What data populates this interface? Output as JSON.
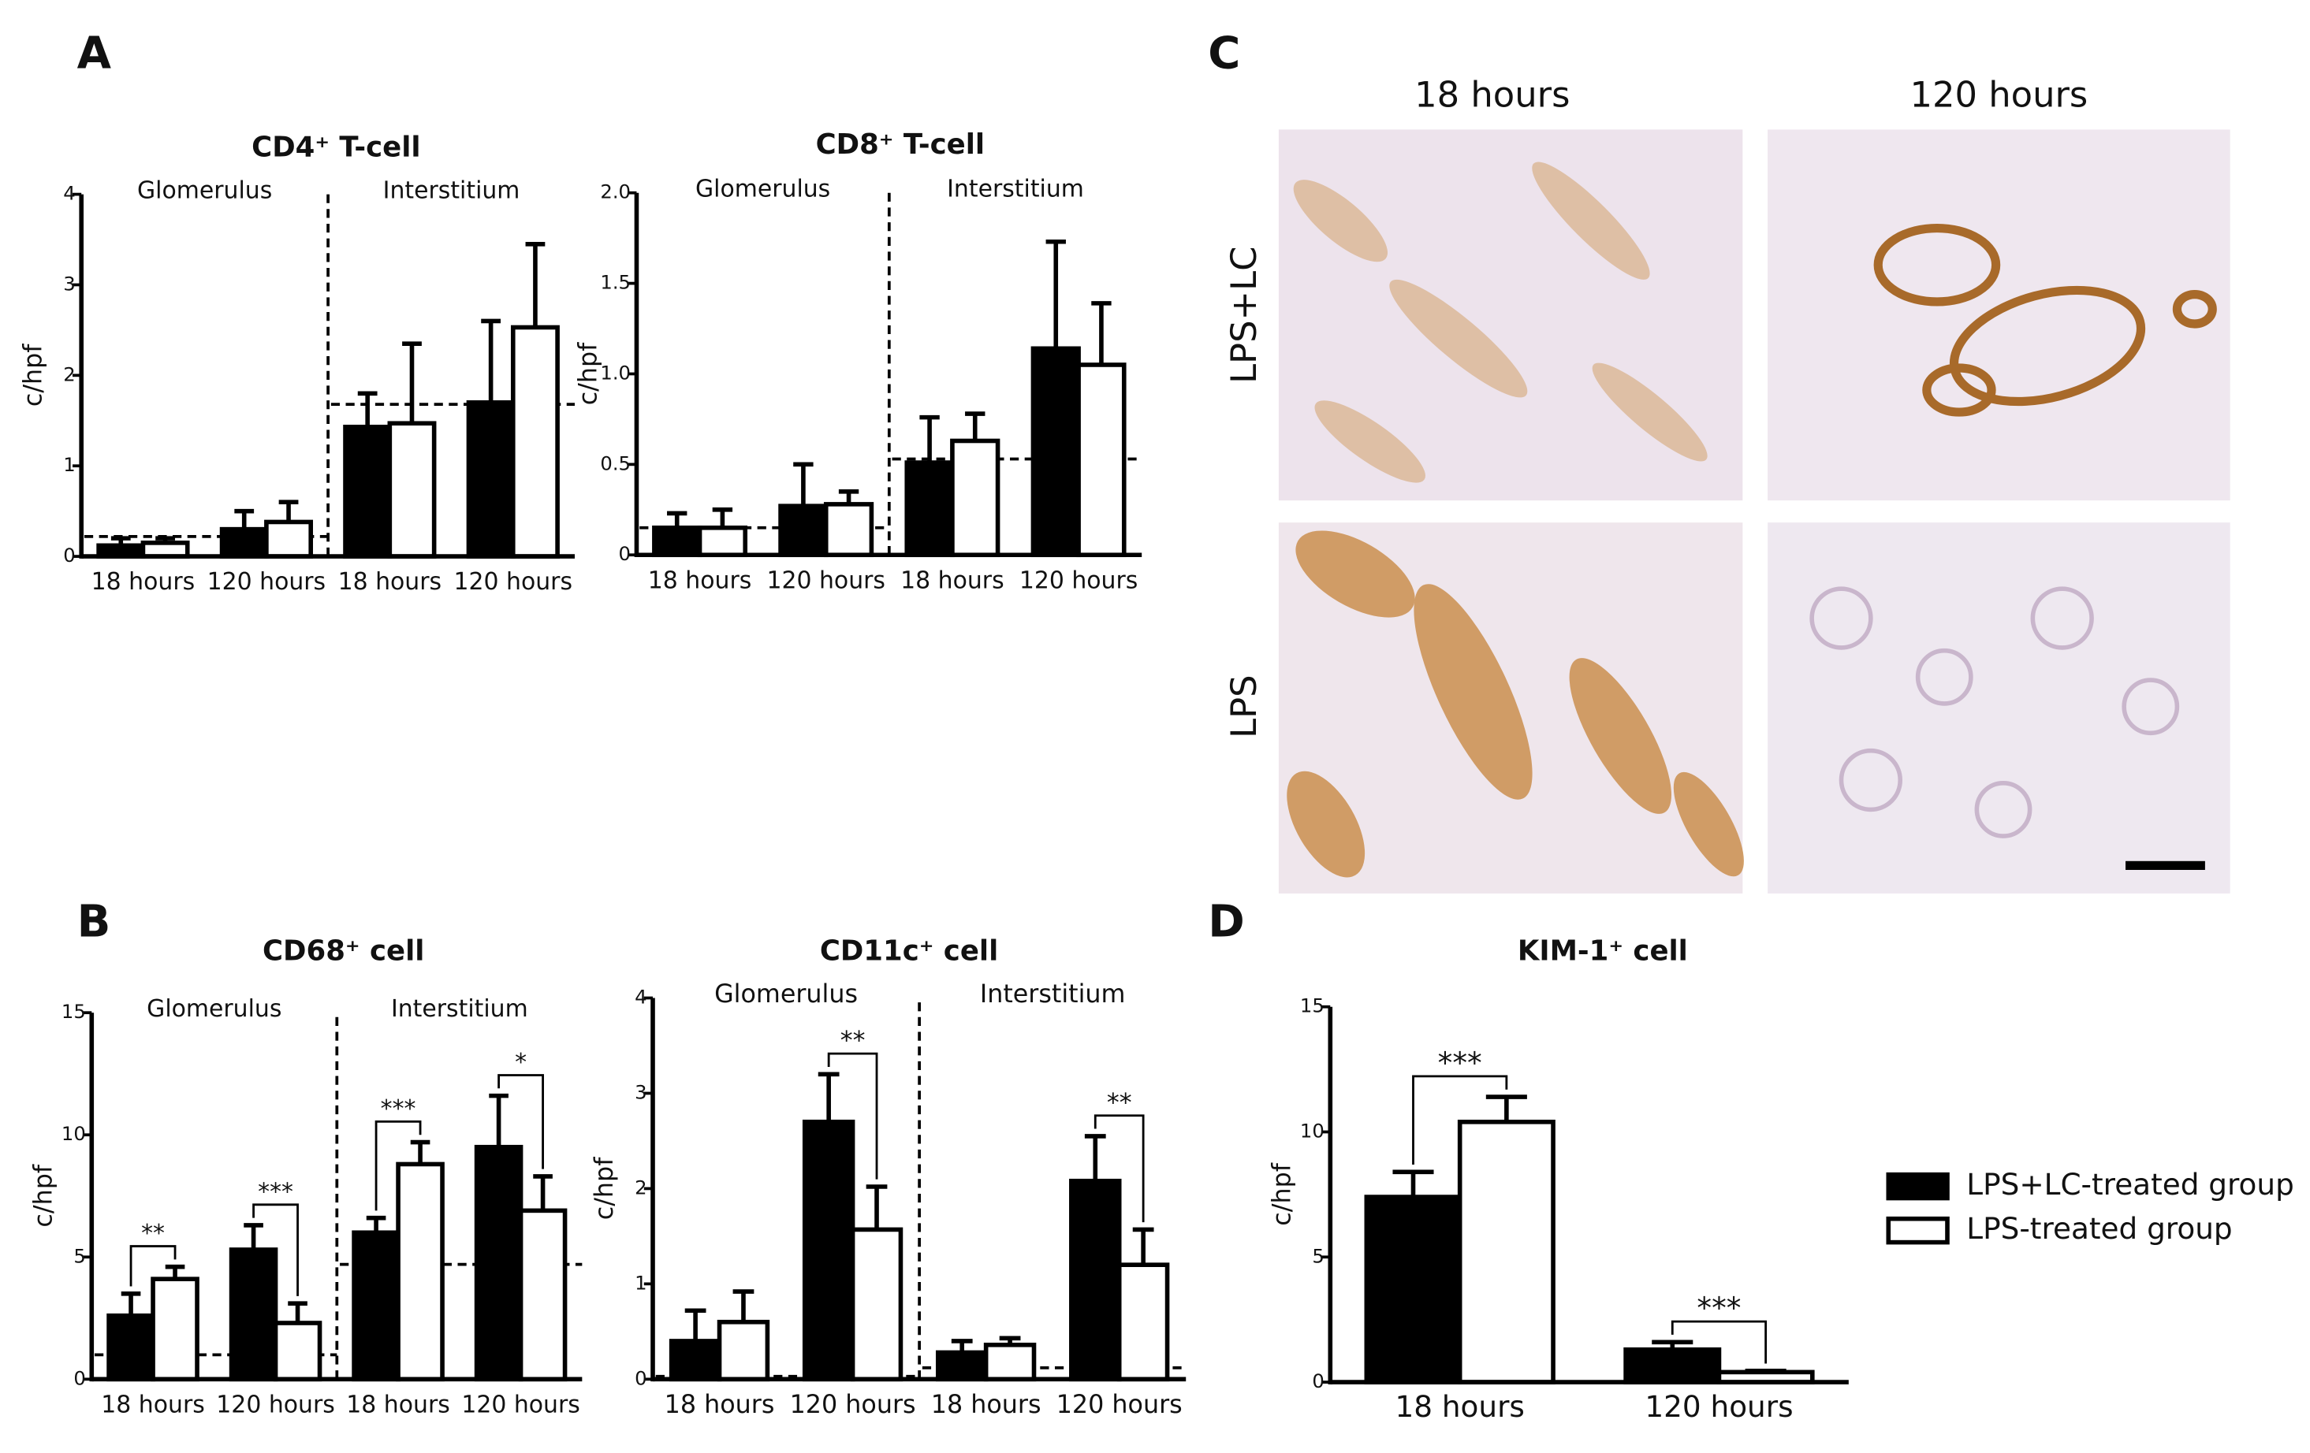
{
  "panel_labels": [
    "A",
    "B",
    "C",
    "D"
  ],
  "micrographs": {
    "columns": [
      "18 hours",
      "120 hours"
    ],
    "rows": [
      "LPS+LC",
      "LPS"
    ]
  },
  "chart_data": [
    {
      "type": "bar",
      "title": "CD4⁺ T-cell",
      "y_label": "c/hpf",
      "categories": [
        "18 hours",
        "120 hours",
        "18 hours",
        "120 hours"
      ],
      "regions": [
        {
          "label": "Glomerulus",
          "baseline": 0.22
        },
        {
          "label": "Interstitium",
          "baseline": 1.68
        }
      ],
      "series": [
        {
          "color": "#000000",
          "values": [
            0.12,
            0.3,
            1.43,
            1.7
          ],
          "errors": [
            0.08,
            0.2,
            0.37,
            0.9
          ]
        },
        {
          "color": "#ffffff",
          "values": [
            0.15,
            0.38,
            1.47,
            2.53
          ],
          "errors": [
            0.05,
            0.22,
            0.88,
            0.92
          ]
        }
      ],
      "ylim": [
        0,
        4
      ],
      "yticks": [
        0,
        1,
        2,
        3,
        4
      ],
      "grid": false
    },
    {
      "type": "bar",
      "title": "CD8⁺ T-cell",
      "y_label": "c/hpf",
      "categories": [
        "18 hours",
        "120 hours",
        "18 hours",
        "120 hours"
      ],
      "regions": [
        {
          "label": "Glomerulus",
          "baseline": 0.15
        },
        {
          "label": "Interstitium",
          "baseline": 0.53
        }
      ],
      "series": [
        {
          "color": "#000000",
          "values": [
            0.15,
            0.27,
            0.51,
            1.14
          ],
          "errors": [
            0.08,
            0.23,
            0.25,
            0.59
          ]
        },
        {
          "color": "#ffffff",
          "values": [
            0.15,
            0.28,
            0.63,
            1.05
          ],
          "errors": [
            0.1,
            0.07,
            0.15,
            0.34
          ]
        }
      ],
      "ylim": [
        0,
        2
      ],
      "yticks": [
        0,
        0.5,
        {
          "value": 1,
          "label": "1.0"
        },
        1.5,
        {
          "value": 2,
          "label": "2.0"
        }
      ],
      "grid": false
    },
    {
      "type": "bar",
      "title": "CD68⁺ cell",
      "y_label": "c/hpf",
      "categories": [
        "18 hours",
        "120 hours",
        "18 hours",
        "120 hours"
      ],
      "regions": [
        {
          "label": "Glomerulus",
          "baseline": 1.0
        },
        {
          "label": "Interstitium",
          "baseline": 4.7
        }
      ],
      "significance": [
        "**",
        "***",
        "***",
        "*"
      ],
      "series": [
        {
          "color": "#000000",
          "values": [
            2.6,
            5.3,
            6.0,
            9.5
          ],
          "errors": [
            0.9,
            1.0,
            0.6,
            2.1
          ]
        },
        {
          "color": "#ffffff",
          "values": [
            4.1,
            2.3,
            8.8,
            6.9
          ],
          "errors": [
            0.5,
            0.8,
            0.9,
            1.4
          ]
        }
      ],
      "ylim": [
        0,
        15
      ],
      "yticks": [
        0,
        5,
        10,
        15
      ],
      "grid": false
    },
    {
      "type": "bar",
      "title": "CD11c⁺ cell",
      "y_label": "c/hpf",
      "categories": [
        "18 hours",
        "120 hours",
        "18 hours",
        "120 hours"
      ],
      "regions": [
        {
          "label": "Glomerulus",
          "baseline": 0.03
        },
        {
          "label": "Interstitium",
          "baseline": 0.12
        }
      ],
      "significance": [
        null,
        "**",
        null,
        "**"
      ],
      "series": [
        {
          "color": "#000000",
          "values": [
            0.4,
            2.7,
            0.28,
            2.08
          ],
          "errors": [
            0.32,
            0.5,
            0.12,
            0.47
          ]
        },
        {
          "color": "#ffffff",
          "values": [
            0.6,
            1.57,
            0.36,
            1.2
          ],
          "errors": [
            0.32,
            0.45,
            0.07,
            0.37
          ]
        }
      ],
      "ylim": [
        0,
        4
      ],
      "yticks": [
        0,
        1,
        2,
        3,
        4
      ],
      "grid": false
    },
    {
      "type": "bar",
      "title": "KIM-1⁺ cell",
      "y_label": "c/hpf",
      "categories": [
        "18 hours",
        "120 hours"
      ],
      "significance": [
        "***",
        "***"
      ],
      "series": [
        {
          "name": "LPS+LC-treated group",
          "color": "#000000",
          "values": [
            7.4,
            1.3
          ],
          "errors": [
            1.0,
            0.3
          ]
        },
        {
          "name": "LPS-treated group",
          "color": "#ffffff",
          "values": [
            10.4,
            0.4
          ],
          "errors": [
            1.0,
            0.05
          ]
        }
      ],
      "ylim": [
        0,
        15
      ],
      "yticks": [
        0,
        5,
        10,
        15
      ],
      "grid": false,
      "legend": "right"
    }
  ]
}
